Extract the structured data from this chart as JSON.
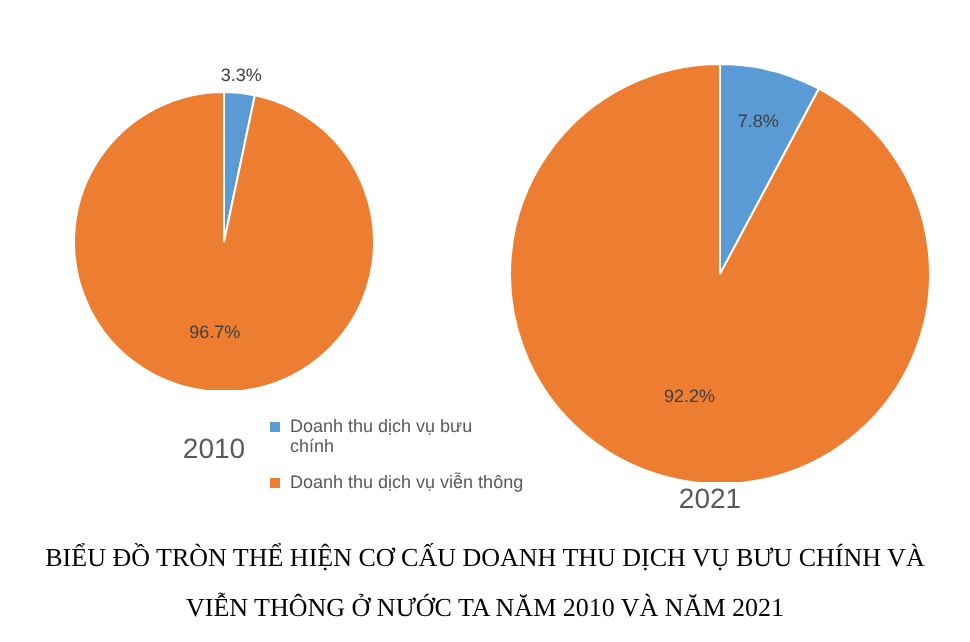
{
  "chart_data": [
    {
      "type": "pie",
      "title": "2010",
      "categories": [
        "Doanh thu dịch vụ bưu chính",
        "Doanh thu dịch vụ viễn thông"
      ],
      "values": [
        3.3,
        96.7
      ],
      "value_labels": [
        "3.3%",
        "96.7%"
      ],
      "colors": [
        "#5b9bd5",
        "#ed7d31"
      ],
      "legend": "bottom right"
    },
    {
      "type": "pie",
      "title": "2021",
      "categories": [
        null,
        null
      ],
      "values": [
        7.8,
        92.2
      ],
      "value_labels": [
        "7.8%",
        "92.2%"
      ],
      "colors": [
        "#5b9bd5",
        "#ed7d31"
      ],
      "annotations": [
        "BIỂU ĐỒ TRÒN THỂ HIỆN CƠ CẤU DOANH THU DỊCH VỤ BƯU CHÍNH VÀ VIỄN THÔNG Ở NƯỚC TA NĂM 2010 VÀ NĂM 2021"
      ]
    }
  ]
}
